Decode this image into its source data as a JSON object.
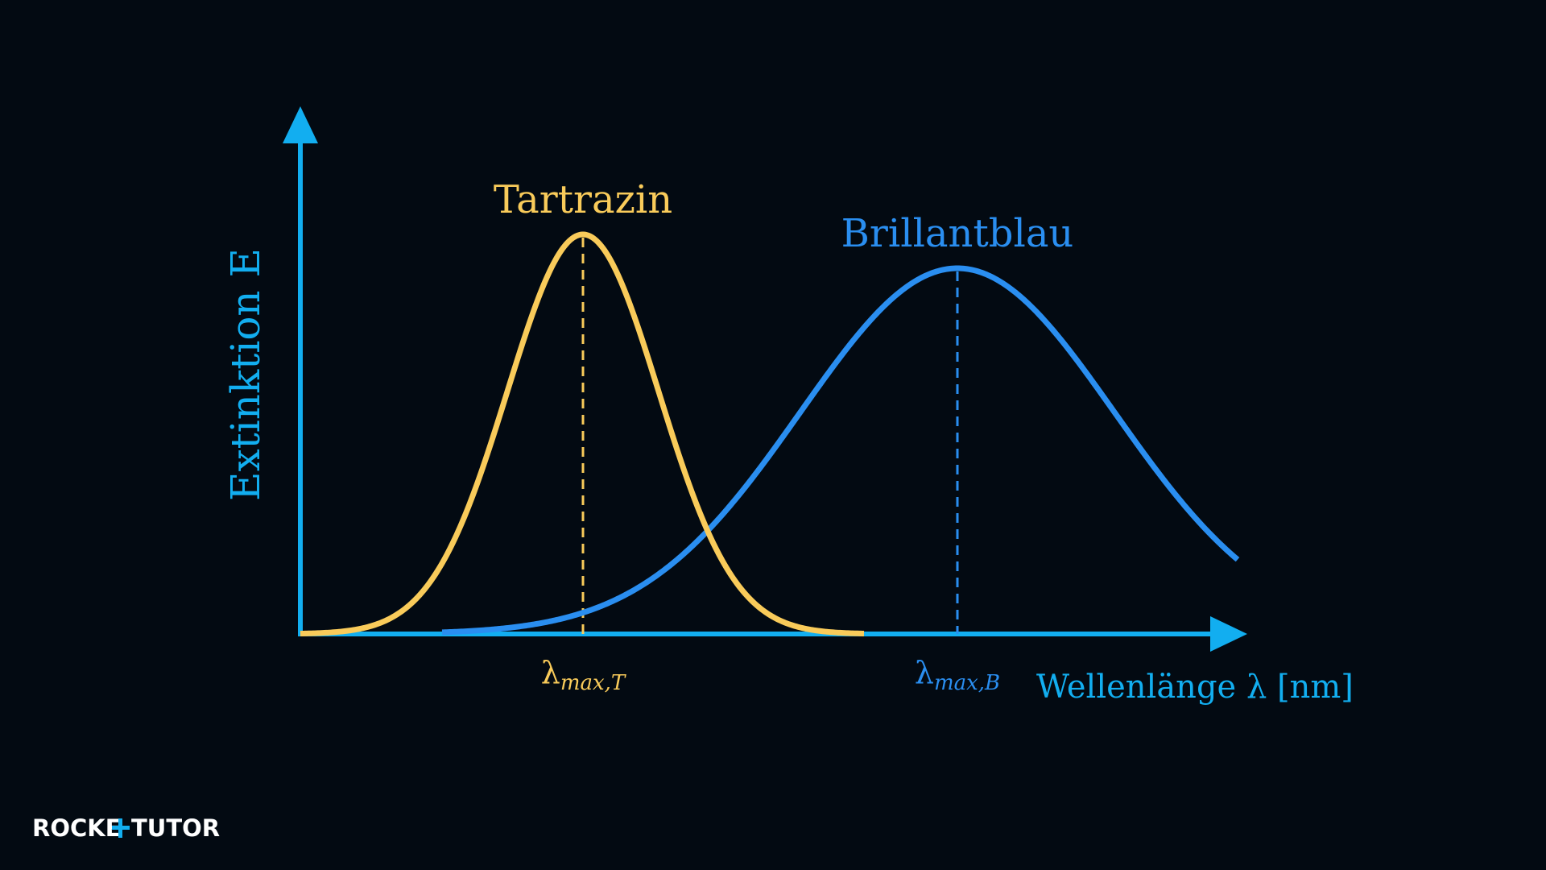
{
  "axes": {
    "y_label": "Extinktion E",
    "x_label": "Wellenlänge λ [nm]"
  },
  "curves": [
    {
      "name": "Tartrazin",
      "peak_label": {
        "symbol": "λ",
        "subscript": "max,T"
      }
    },
    {
      "name": "Brillantblau",
      "peak_label": {
        "symbol": "λ",
        "subscript": "max,B"
      }
    }
  ],
  "logo": {
    "left": "ROCKE",
    "right": "TUTOR"
  }
}
